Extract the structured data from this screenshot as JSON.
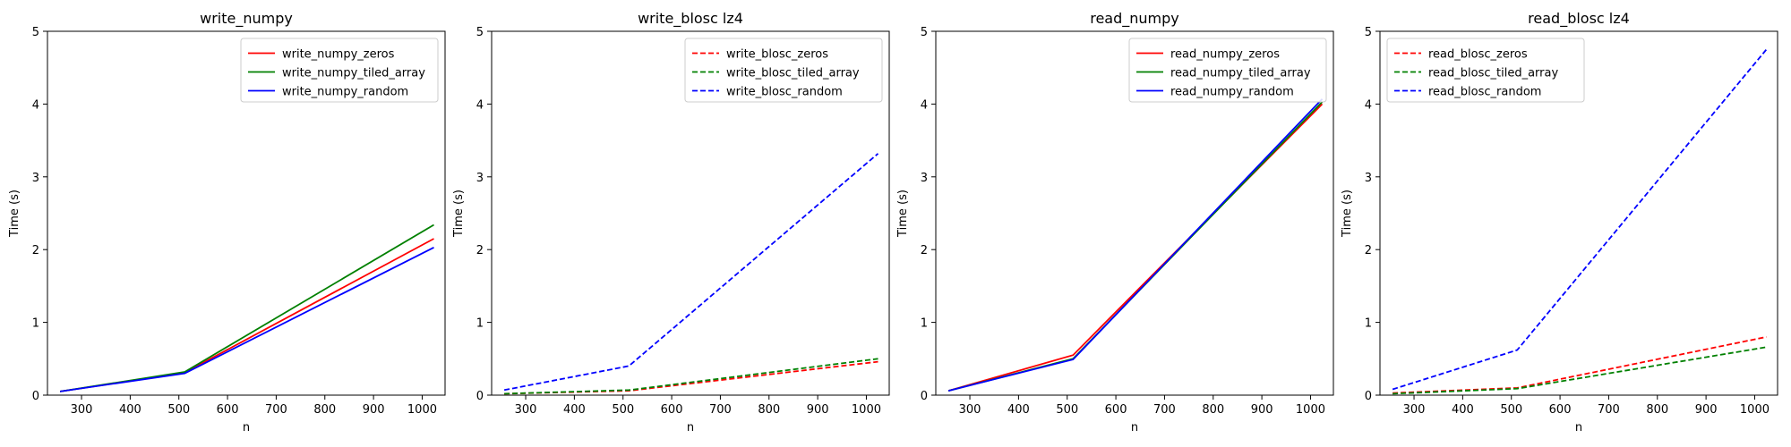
{
  "chart_data": [
    {
      "type": "line",
      "title": "write_numpy",
      "xlabel": "n",
      "ylabel": "Time (s)",
      "xlim": [
        230,
        1047
      ],
      "ylim": [
        0,
        5
      ],
      "xticks": [
        300,
        400,
        500,
        600,
        700,
        800,
        900,
        1000
      ],
      "yticks": [
        0,
        1,
        2,
        3,
        4,
        5
      ],
      "legend": "top-right",
      "x": [
        256,
        512,
        1024
      ],
      "series": [
        {
          "name": "write_numpy_zeros",
          "values": [
            0.05,
            0.31,
            2.15
          ],
          "color": "#ff0000",
          "dash": "solid"
        },
        {
          "name": "write_numpy_tiled_array",
          "values": [
            0.05,
            0.32,
            2.34
          ],
          "color": "#008000",
          "dash": "solid"
        },
        {
          "name": "write_numpy_random",
          "values": [
            0.05,
            0.3,
            2.03
          ],
          "color": "#0000ff",
          "dash": "solid"
        }
      ]
    },
    {
      "type": "line",
      "title": "write_blosc lz4",
      "xlabel": "n",
      "ylabel": "Time (s)",
      "xlim": [
        230,
        1047
      ],
      "ylim": [
        0,
        5
      ],
      "xticks": [
        300,
        400,
        500,
        600,
        700,
        800,
        900,
        1000
      ],
      "yticks": [
        0,
        1,
        2,
        3,
        4,
        5
      ],
      "legend": "top-right",
      "x": [
        256,
        512,
        1024
      ],
      "series": [
        {
          "name": "write_blosc_zeros",
          "values": [
            0.02,
            0.06,
            0.46
          ],
          "color": "#ff0000",
          "dash": "dashed"
        },
        {
          "name": "write_blosc_tiled_array",
          "values": [
            0.02,
            0.07,
            0.5
          ],
          "color": "#008000",
          "dash": "dashed"
        },
        {
          "name": "write_blosc_random",
          "values": [
            0.07,
            0.4,
            3.32
          ],
          "color": "#0000ff",
          "dash": "dashed"
        }
      ]
    },
    {
      "type": "line",
      "title": "read_numpy",
      "xlabel": "n",
      "ylabel": "Time (s)",
      "xlim": [
        230,
        1047
      ],
      "ylim": [
        0,
        5
      ],
      "xticks": [
        300,
        400,
        500,
        600,
        700,
        800,
        900,
        1000
      ],
      "yticks": [
        0,
        1,
        2,
        3,
        4,
        5
      ],
      "legend": "top-right",
      "x": [
        256,
        512,
        1024
      ],
      "series": [
        {
          "name": "read_numpy_zeros",
          "values": [
            0.06,
            0.55,
            4.0
          ],
          "color": "#ff0000",
          "dash": "solid"
        },
        {
          "name": "read_numpy_tiled_array",
          "values": [
            0.06,
            0.5,
            4.03
          ],
          "color": "#008000",
          "dash": "solid"
        },
        {
          "name": "read_numpy_random",
          "values": [
            0.06,
            0.49,
            4.07
          ],
          "color": "#0000ff",
          "dash": "solid"
        }
      ]
    },
    {
      "type": "line",
      "title": "read_blosc lz4",
      "xlabel": "n",
      "ylabel": "Time (s)",
      "xlim": [
        230,
        1047
      ],
      "ylim": [
        0,
        5
      ],
      "xticks": [
        300,
        400,
        500,
        600,
        700,
        800,
        900,
        1000
      ],
      "yticks": [
        0,
        1,
        2,
        3,
        4,
        5
      ],
      "legend": "top-left",
      "x": [
        256,
        512,
        1024
      ],
      "series": [
        {
          "name": "read_blosc_zeros",
          "values": [
            0.03,
            0.1,
            0.8
          ],
          "color": "#ff0000",
          "dash": "dashed"
        },
        {
          "name": "read_blosc_tiled_array",
          "values": [
            0.02,
            0.09,
            0.66
          ],
          "color": "#008000",
          "dash": "dashed"
        },
        {
          "name": "read_blosc_random",
          "values": [
            0.08,
            0.62,
            4.75
          ],
          "color": "#0000ff",
          "dash": "dashed"
        }
      ]
    }
  ]
}
